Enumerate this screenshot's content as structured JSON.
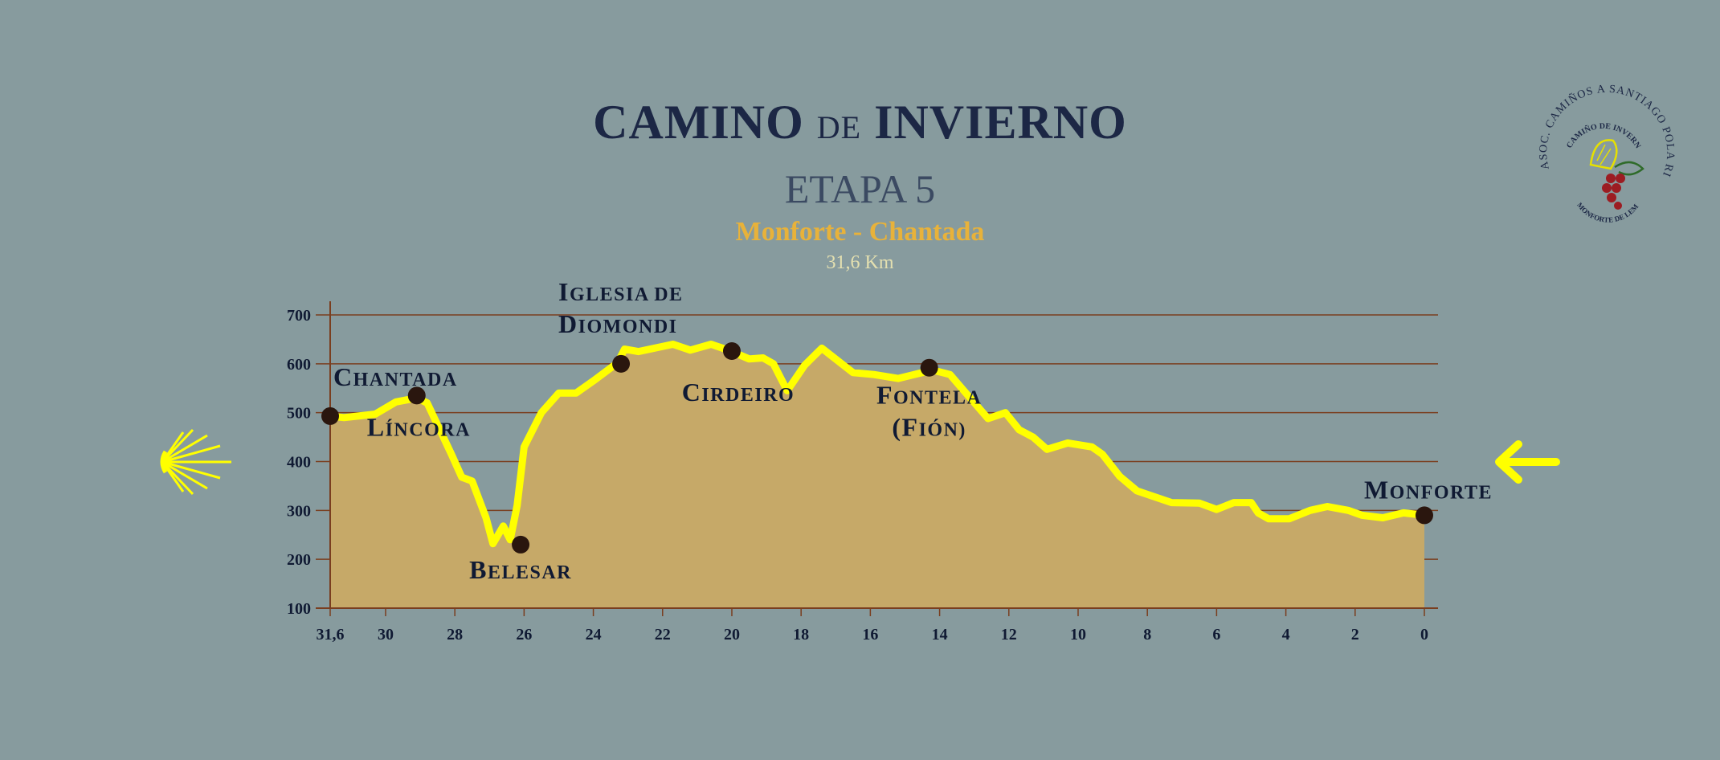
{
  "header": {
    "title_main_1": "CAMINO",
    "title_small": "DE",
    "title_main_2": "INVIERNO",
    "stage": "ETAPA 5",
    "route": "Monforte - Chantada",
    "distance": "31,6 Km"
  },
  "logo": {
    "outer_text": "ASOC. CAMIÑOS A SANTIAGO POLA RIBEIRA SACRA",
    "inner_top": "CAMIÑO DE INVERNO",
    "inner_bottom": "MONFORTE DE LEMOS",
    "icon": "scallop-shell-and-grapes"
  },
  "icons": {
    "left": "scallop-shell-icon",
    "right": "arrow-left-icon"
  },
  "colors": {
    "background": "#879b9e",
    "profile_fill": "#c6a968",
    "profile_line": "#ffff00",
    "gridline": "#7a3e1f",
    "marker": "#2a160e",
    "title": "#1c2745",
    "route": "#e8b23a"
  },
  "chart_data": {
    "type": "area",
    "title": "",
    "xlabel": "",
    "ylabel": "",
    "x_reversed": true,
    "xlim": [
      0,
      31.6
    ],
    "ylim": [
      100,
      730
    ],
    "grid": "horizontal",
    "y_ticks": [
      "100",
      "200",
      "300",
      "400",
      "500",
      "600",
      "700"
    ],
    "x_ticks": [
      {
        "value": 31.6,
        "label": "31,6"
      },
      {
        "value": 30,
        "label": "30"
      },
      {
        "value": 28,
        "label": "28"
      },
      {
        "value": 26,
        "label": "26"
      },
      {
        "value": 24,
        "label": "24"
      },
      {
        "value": 22,
        "label": "22"
      },
      {
        "value": 20,
        "label": "20"
      },
      {
        "value": 18,
        "label": "18"
      },
      {
        "value": 16,
        "label": "16"
      },
      {
        "value": 14,
        "label": "14"
      },
      {
        "value": 12,
        "label": "12"
      },
      {
        "value": 10,
        "label": "10"
      },
      {
        "value": 8,
        "label": "8"
      },
      {
        "value": 6,
        "label": "6"
      },
      {
        "value": 4,
        "label": "4"
      },
      {
        "value": 2,
        "label": "2"
      },
      {
        "value": 0,
        "label": "0"
      }
    ],
    "series": [
      {
        "values": [
          {
            "x": 0,
            "y": 290
          },
          {
            "x": 0.6,
            "y": 295
          },
          {
            "x": 1.2,
            "y": 285
          },
          {
            "x": 1.8,
            "y": 290
          },
          {
            "x": 2.2,
            "y": 300
          },
          {
            "x": 2.8,
            "y": 308
          },
          {
            "x": 3.3,
            "y": 300
          },
          {
            "x": 3.9,
            "y": 283
          },
          {
            "x": 4.5,
            "y": 283
          },
          {
            "x": 4.8,
            "y": 295
          },
          {
            "x": 5,
            "y": 316
          },
          {
            "x": 5.5,
            "y": 316
          },
          {
            "x": 6,
            "y": 302
          },
          {
            "x": 6.5,
            "y": 315
          },
          {
            "x": 7.3,
            "y": 316
          },
          {
            "x": 8.3,
            "y": 340
          },
          {
            "x": 8.8,
            "y": 370
          },
          {
            "x": 9.3,
            "y": 415
          },
          {
            "x": 9.6,
            "y": 430
          },
          {
            "x": 10.3,
            "y": 438
          },
          {
            "x": 10.9,
            "y": 425
          },
          {
            "x": 11.3,
            "y": 450
          },
          {
            "x": 11.7,
            "y": 465
          },
          {
            "x": 12.1,
            "y": 500
          },
          {
            "x": 12.6,
            "y": 488
          },
          {
            "x": 13.3,
            "y": 545
          },
          {
            "x": 13.7,
            "y": 578
          },
          {
            "x": 14.2,
            "y": 587
          },
          {
            "x": 15.2,
            "y": 570
          },
          {
            "x": 15.9,
            "y": 578
          },
          {
            "x": 16.5,
            "y": 582
          },
          {
            "x": 17.4,
            "y": 632
          },
          {
            "x": 17.9,
            "y": 597
          },
          {
            "x": 18.4,
            "y": 545
          },
          {
            "x": 18.8,
            "y": 600
          },
          {
            "x": 19.1,
            "y": 612
          },
          {
            "x": 19.5,
            "y": 610
          },
          {
            "x": 20.1,
            "y": 628
          },
          {
            "x": 20.6,
            "y": 640
          },
          {
            "x": 21.2,
            "y": 628
          },
          {
            "x": 21.7,
            "y": 640
          },
          {
            "x": 22.7,
            "y": 625
          },
          {
            "x": 23.1,
            "y": 630
          },
          {
            "x": 23.3,
            "y": 602
          },
          {
            "x": 24,
            "y": 565
          },
          {
            "x": 24.5,
            "y": 540
          },
          {
            "x": 25,
            "y": 540
          },
          {
            "x": 25.5,
            "y": 500
          },
          {
            "x": 26,
            "y": 430
          },
          {
            "x": 26.2,
            "y": 310
          },
          {
            "x": 26.4,
            "y": 240
          },
          {
            "x": 26.6,
            "y": 268
          },
          {
            "x": 26.9,
            "y": 232
          },
          {
            "x": 27.1,
            "y": 285
          },
          {
            "x": 27.5,
            "y": 360
          },
          {
            "x": 27.8,
            "y": 368
          },
          {
            "x": 28.1,
            "y": 415
          },
          {
            "x": 28.8,
            "y": 520
          },
          {
            "x": 29.1,
            "y": 530
          },
          {
            "x": 29.7,
            "y": 522
          },
          {
            "x": 30.3,
            "y": 497
          },
          {
            "x": 31.2,
            "y": 490
          },
          {
            "x": 31.6,
            "y": 493
          }
        ]
      }
    ],
    "points": [
      {
        "x": 31.6,
        "y": 493,
        "label": [
          "Chantada"
        ]
      },
      {
        "x": 29.1,
        "y": 535,
        "label": [
          "Líncora"
        ]
      },
      {
        "x": 26.1,
        "y": 230,
        "label": [
          "Belesar"
        ]
      },
      {
        "x": 23.2,
        "y": 600,
        "label": [
          "Iglesia de",
          "Diomondi"
        ]
      },
      {
        "x": 20.0,
        "y": 626,
        "label": [
          "Cirdeiro"
        ]
      },
      {
        "x": 14.3,
        "y": 592,
        "label": [
          "Fontela",
          "(Fión)"
        ]
      },
      {
        "x": 0,
        "y": 290,
        "label": [
          "Monforte"
        ]
      }
    ]
  }
}
